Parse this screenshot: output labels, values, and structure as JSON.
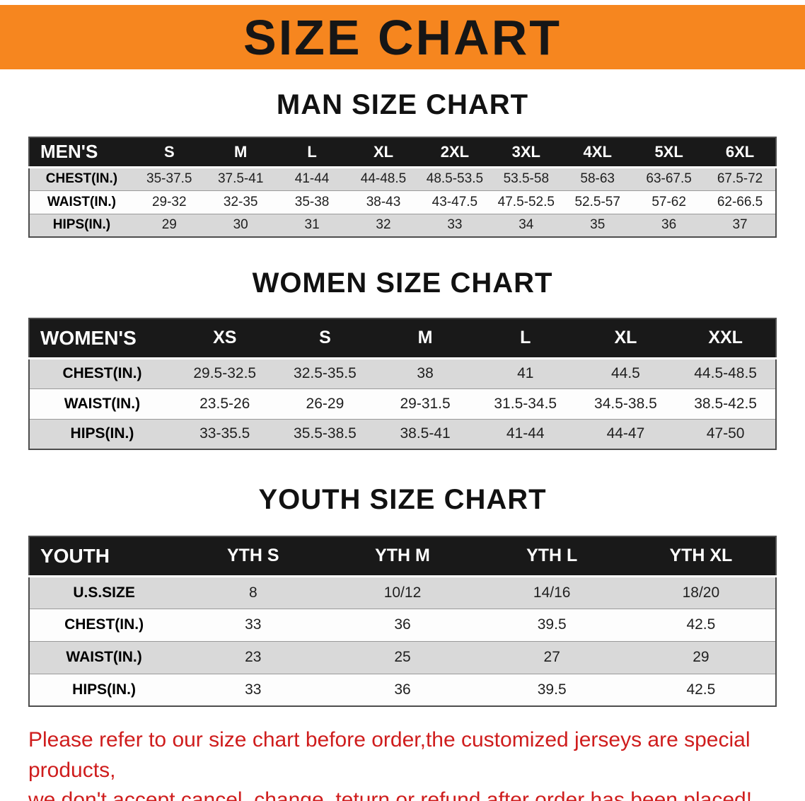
{
  "banner": {
    "title": "SIZE CHART"
  },
  "colors": {
    "banner_bg": "#f6861f",
    "banner_text": "#161616",
    "table_header_bg": "#191919",
    "table_header_text": "#ffffff",
    "row_shade": "#d9d9d9",
    "row_plain": "#fdfdfd",
    "notice_text": "#cf1d1d"
  },
  "sections": [
    {
      "title": "MAN SIZE CHART",
      "table": {
        "header": [
          "MEN'S",
          "S",
          "M",
          "L",
          "XL",
          "2XL",
          "3XL",
          "4XL",
          "5XL",
          "6XL"
        ],
        "rows": [
          [
            "CHEST(IN.)",
            "35-37.5",
            "37.5-41",
            "41-44",
            "44-48.5",
            "48.5-53.5",
            "53.5-58",
            "58-63",
            "63-67.5",
            "67.5-72"
          ],
          [
            "WAIST(IN.)",
            "29-32",
            "32-35",
            "35-38",
            "38-43",
            "43-47.5",
            "47.5-52.5",
            "52.5-57",
            "57-62",
            "62-66.5"
          ],
          [
            "HIPS(IN.)",
            "29",
            "30",
            "31",
            "32",
            "33",
            "34",
            "35",
            "36",
            "37"
          ]
        ]
      }
    },
    {
      "title": "WOMEN SIZE CHART",
      "table": {
        "header": [
          "WOMEN'S",
          "XS",
          "S",
          "M",
          "L",
          "XL",
          "XXL"
        ],
        "rows": [
          [
            "CHEST(IN.)",
            "29.5-32.5",
            "32.5-35.5",
            "38",
            "41",
            "44.5",
            "44.5-48.5"
          ],
          [
            "WAIST(IN.)",
            "23.5-26",
            "26-29",
            "29-31.5",
            "31.5-34.5",
            "34.5-38.5",
            "38.5-42.5"
          ],
          [
            "HIPS(IN.)",
            "33-35.5",
            "35.5-38.5",
            "38.5-41",
            "41-44",
            "44-47",
            "47-50"
          ]
        ]
      }
    },
    {
      "title": "YOUTH SIZE CHART",
      "table": {
        "header": [
          "YOUTH",
          "YTH S",
          "YTH M",
          "YTH L",
          "YTH XL"
        ],
        "rows": [
          [
            "U.S.SIZE",
            "8",
            "10/12",
            "14/16",
            "18/20"
          ],
          [
            "CHEST(IN.)",
            "33",
            "36",
            "39.5",
            "42.5"
          ],
          [
            "WAIST(IN.)",
            "23",
            "25",
            "27",
            "29"
          ],
          [
            "HIPS(IN.)",
            "33",
            "36",
            "39.5",
            "42.5"
          ]
        ]
      }
    }
  ],
  "footer": {
    "line1": "Please refer to our size chart before order,the customized jerseys are special products,",
    "line2": "we don't accept cancel, change, teturn or refund after order has been placed!"
  }
}
